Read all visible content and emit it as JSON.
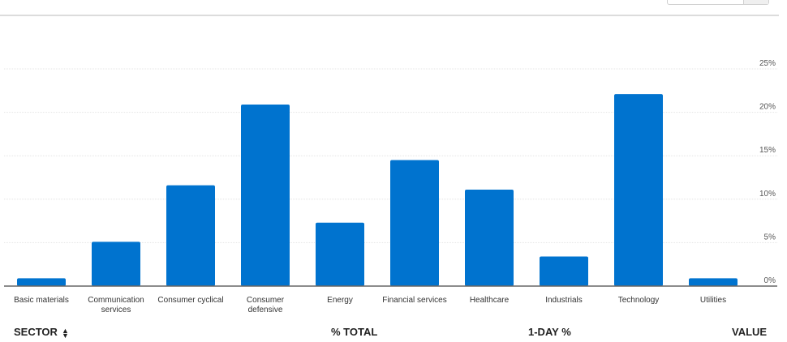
{
  "chart_data": {
    "type": "bar",
    "categories": [
      "Basic materials",
      "Communication services",
      "Consumer cyclical",
      "Consumer defensive",
      "Energy",
      "Financial services",
      "Healthcare",
      "Industrials",
      "Technology",
      "Utilities"
    ],
    "category_lines": [
      [
        "Basic materials"
      ],
      [
        "Communication",
        "services"
      ],
      [
        "Consumer cyclical"
      ],
      [
        "Consumer",
        "defensive"
      ],
      [
        "Energy"
      ],
      [
        "Financial services"
      ],
      [
        "Healthcare"
      ],
      [
        "Industrials"
      ],
      [
        "Technology"
      ],
      [
        "Utilities"
      ]
    ],
    "values": [
      0.9,
      5.1,
      11.6,
      20.9,
      7.3,
      14.5,
      11.1,
      3.4,
      22.1,
      0.9
    ],
    "yticks": [
      0,
      5,
      10,
      15,
      20,
      25
    ],
    "ytick_labels": [
      "0%",
      "5%",
      "10%",
      "15%",
      "20%",
      "25%"
    ],
    "ylim": [
      0,
      25
    ],
    "bar_color": "#0073cf",
    "grid": true,
    "y_axis_side": "right",
    "title": "",
    "xlabel": "",
    "ylabel": ""
  },
  "table_header": {
    "sector": "SECTOR",
    "sort_icon": "sort-updown-icon",
    "total": "% TOTAL",
    "day": "1-DAY %",
    "value": "VALUE"
  }
}
